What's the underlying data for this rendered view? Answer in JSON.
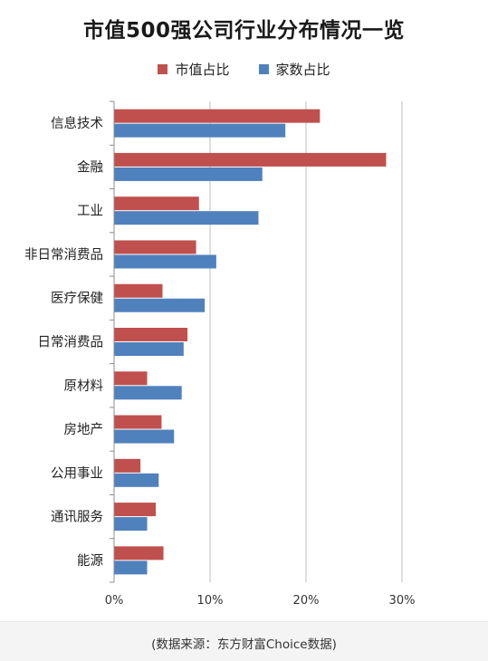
{
  "chart_data": {
    "type": "bar",
    "orientation": "horizontal",
    "title": "市值500强公司行业分布情况一览",
    "categories": [
      "信息技术",
      "金融",
      "工业",
      "非日常消费品",
      "医疗保健",
      "日常消费品",
      "原材料",
      "房地产",
      "公用事业",
      "通讯服务",
      "能源"
    ],
    "series": [
      {
        "name": "市值占比",
        "color": "#c0504d",
        "values": [
          21.4,
          28.3,
          8.8,
          8.5,
          5.0,
          7.6,
          3.4,
          4.9,
          2.7,
          4.3,
          5.1
        ]
      },
      {
        "name": "家数占比",
        "color": "#4f81bd",
        "values": [
          17.8,
          15.4,
          15.0,
          10.6,
          9.4,
          7.2,
          7.0,
          6.2,
          4.6,
          3.4,
          3.4
        ]
      }
    ],
    "xlim": [
      0,
      30
    ],
    "xticks": [
      "0%",
      "10%",
      "20%",
      "30%"
    ],
    "grid": true,
    "legend_position": "top-center"
  },
  "footer": {
    "source": "(数据来源：东方财富Choice数据)"
  }
}
